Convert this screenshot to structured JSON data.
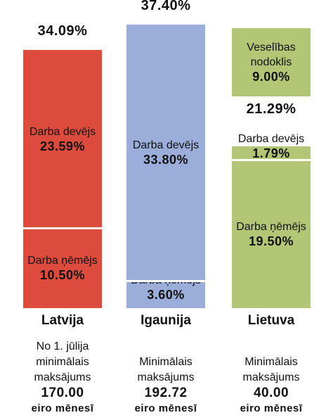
{
  "chart_data": {
    "type": "stacked-bar",
    "columns": [
      {
        "name": "Latvija",
        "color": "#dc4b3c",
        "total": 34.09,
        "total_label": "34.09%",
        "segments": [
          {
            "name": "Darba ņēmējs",
            "value": 10.5,
            "value_label": "10.50%"
          },
          {
            "name": "Darba devējs",
            "value": 23.59,
            "value_label": "23.59%"
          }
        ],
        "note": "No 1. jūlija minimālais maksājums",
        "amount": "170.00",
        "amount_unit": "eiro mēnesī"
      },
      {
        "name": "Igaunija",
        "color": "#9aaed9",
        "total": 37.4,
        "total_label": "37.40%",
        "segments": [
          {
            "name": "Darba ņēmējs",
            "value": 3.6,
            "value_label": "3.60%"
          },
          {
            "name": "Darba devējs",
            "value": 33.8,
            "value_label": "33.80%"
          }
        ],
        "note": "Minimālais maksājums",
        "amount": "192.72",
        "amount_unit": "eiro mēnesī"
      },
      {
        "name": "Lietuva",
        "color": "#b3c676",
        "total": 21.29,
        "total_label": "21.29%",
        "segments": [
          {
            "name": "Darba ņēmējs",
            "value": 19.5,
            "value_label": "19.50%"
          },
          {
            "name": "Darba devējs",
            "value": 1.79,
            "value_label": "1.79%"
          }
        ],
        "additional": {
          "name": "Veselības nodoklis",
          "value": 9.0,
          "value_label": "9.00%"
        },
        "note": "Minimālais maksājums",
        "amount": "40.00",
        "amount_unit": "eiro mēnesī"
      }
    ]
  }
}
